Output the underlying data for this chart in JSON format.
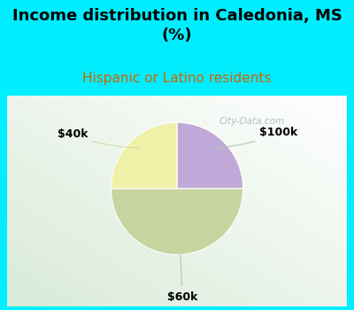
{
  "title": "Income distribution in Caledonia, MS\n(%)",
  "subtitle": "Hispanic or Latino residents",
  "slices": [
    {
      "label": "$100k",
      "value": 25,
      "color": "#c0a8d8"
    },
    {
      "label": "$60k",
      "value": 50,
      "color": "#c8d4a0"
    },
    {
      "label": "$40k",
      "value": 25,
      "color": "#f0f0a8"
    }
  ],
  "title_fontsize": 13,
  "subtitle_fontsize": 11,
  "subtitle_color": "#cc6600",
  "title_color": "#000000",
  "cyan_bg": "#00eeff",
  "label_color": "#000000",
  "label_fontsize": 9,
  "watermark": "City-Data.com",
  "watermark_color": "#aabbcc"
}
